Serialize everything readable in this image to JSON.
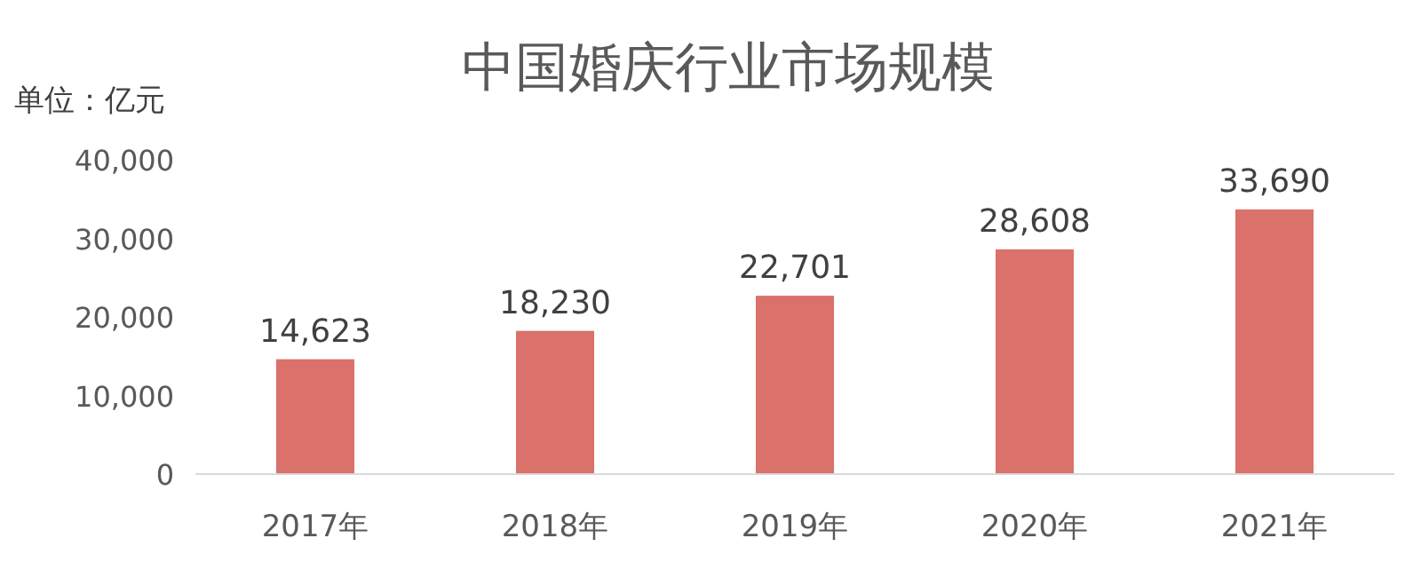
{
  "chart_data": {
    "type": "bar",
    "title": "中国婚庆行业市场规模",
    "ylabel": "单位：亿元",
    "categories": [
      "2017年",
      "2018年",
      "2019年",
      "2020年",
      "2021年"
    ],
    "values": [
      14623,
      18230,
      22701,
      28608,
      33690
    ],
    "color": "#da716b",
    "ylim": [
      0,
      40000
    ],
    "yticks": [
      {
        "value": 0,
        "label": "0"
      },
      {
        "value": 10000,
        "label": "10,000"
      },
      {
        "value": 20000,
        "label": "20,000"
      },
      {
        "value": 30000,
        "label": "30,000"
      },
      {
        "value": 40000,
        "label": "40,000"
      }
    ],
    "value_labels": [
      "14,623",
      "18,230",
      "22,701",
      "28,608",
      "33,690"
    ],
    "grid": false
  }
}
